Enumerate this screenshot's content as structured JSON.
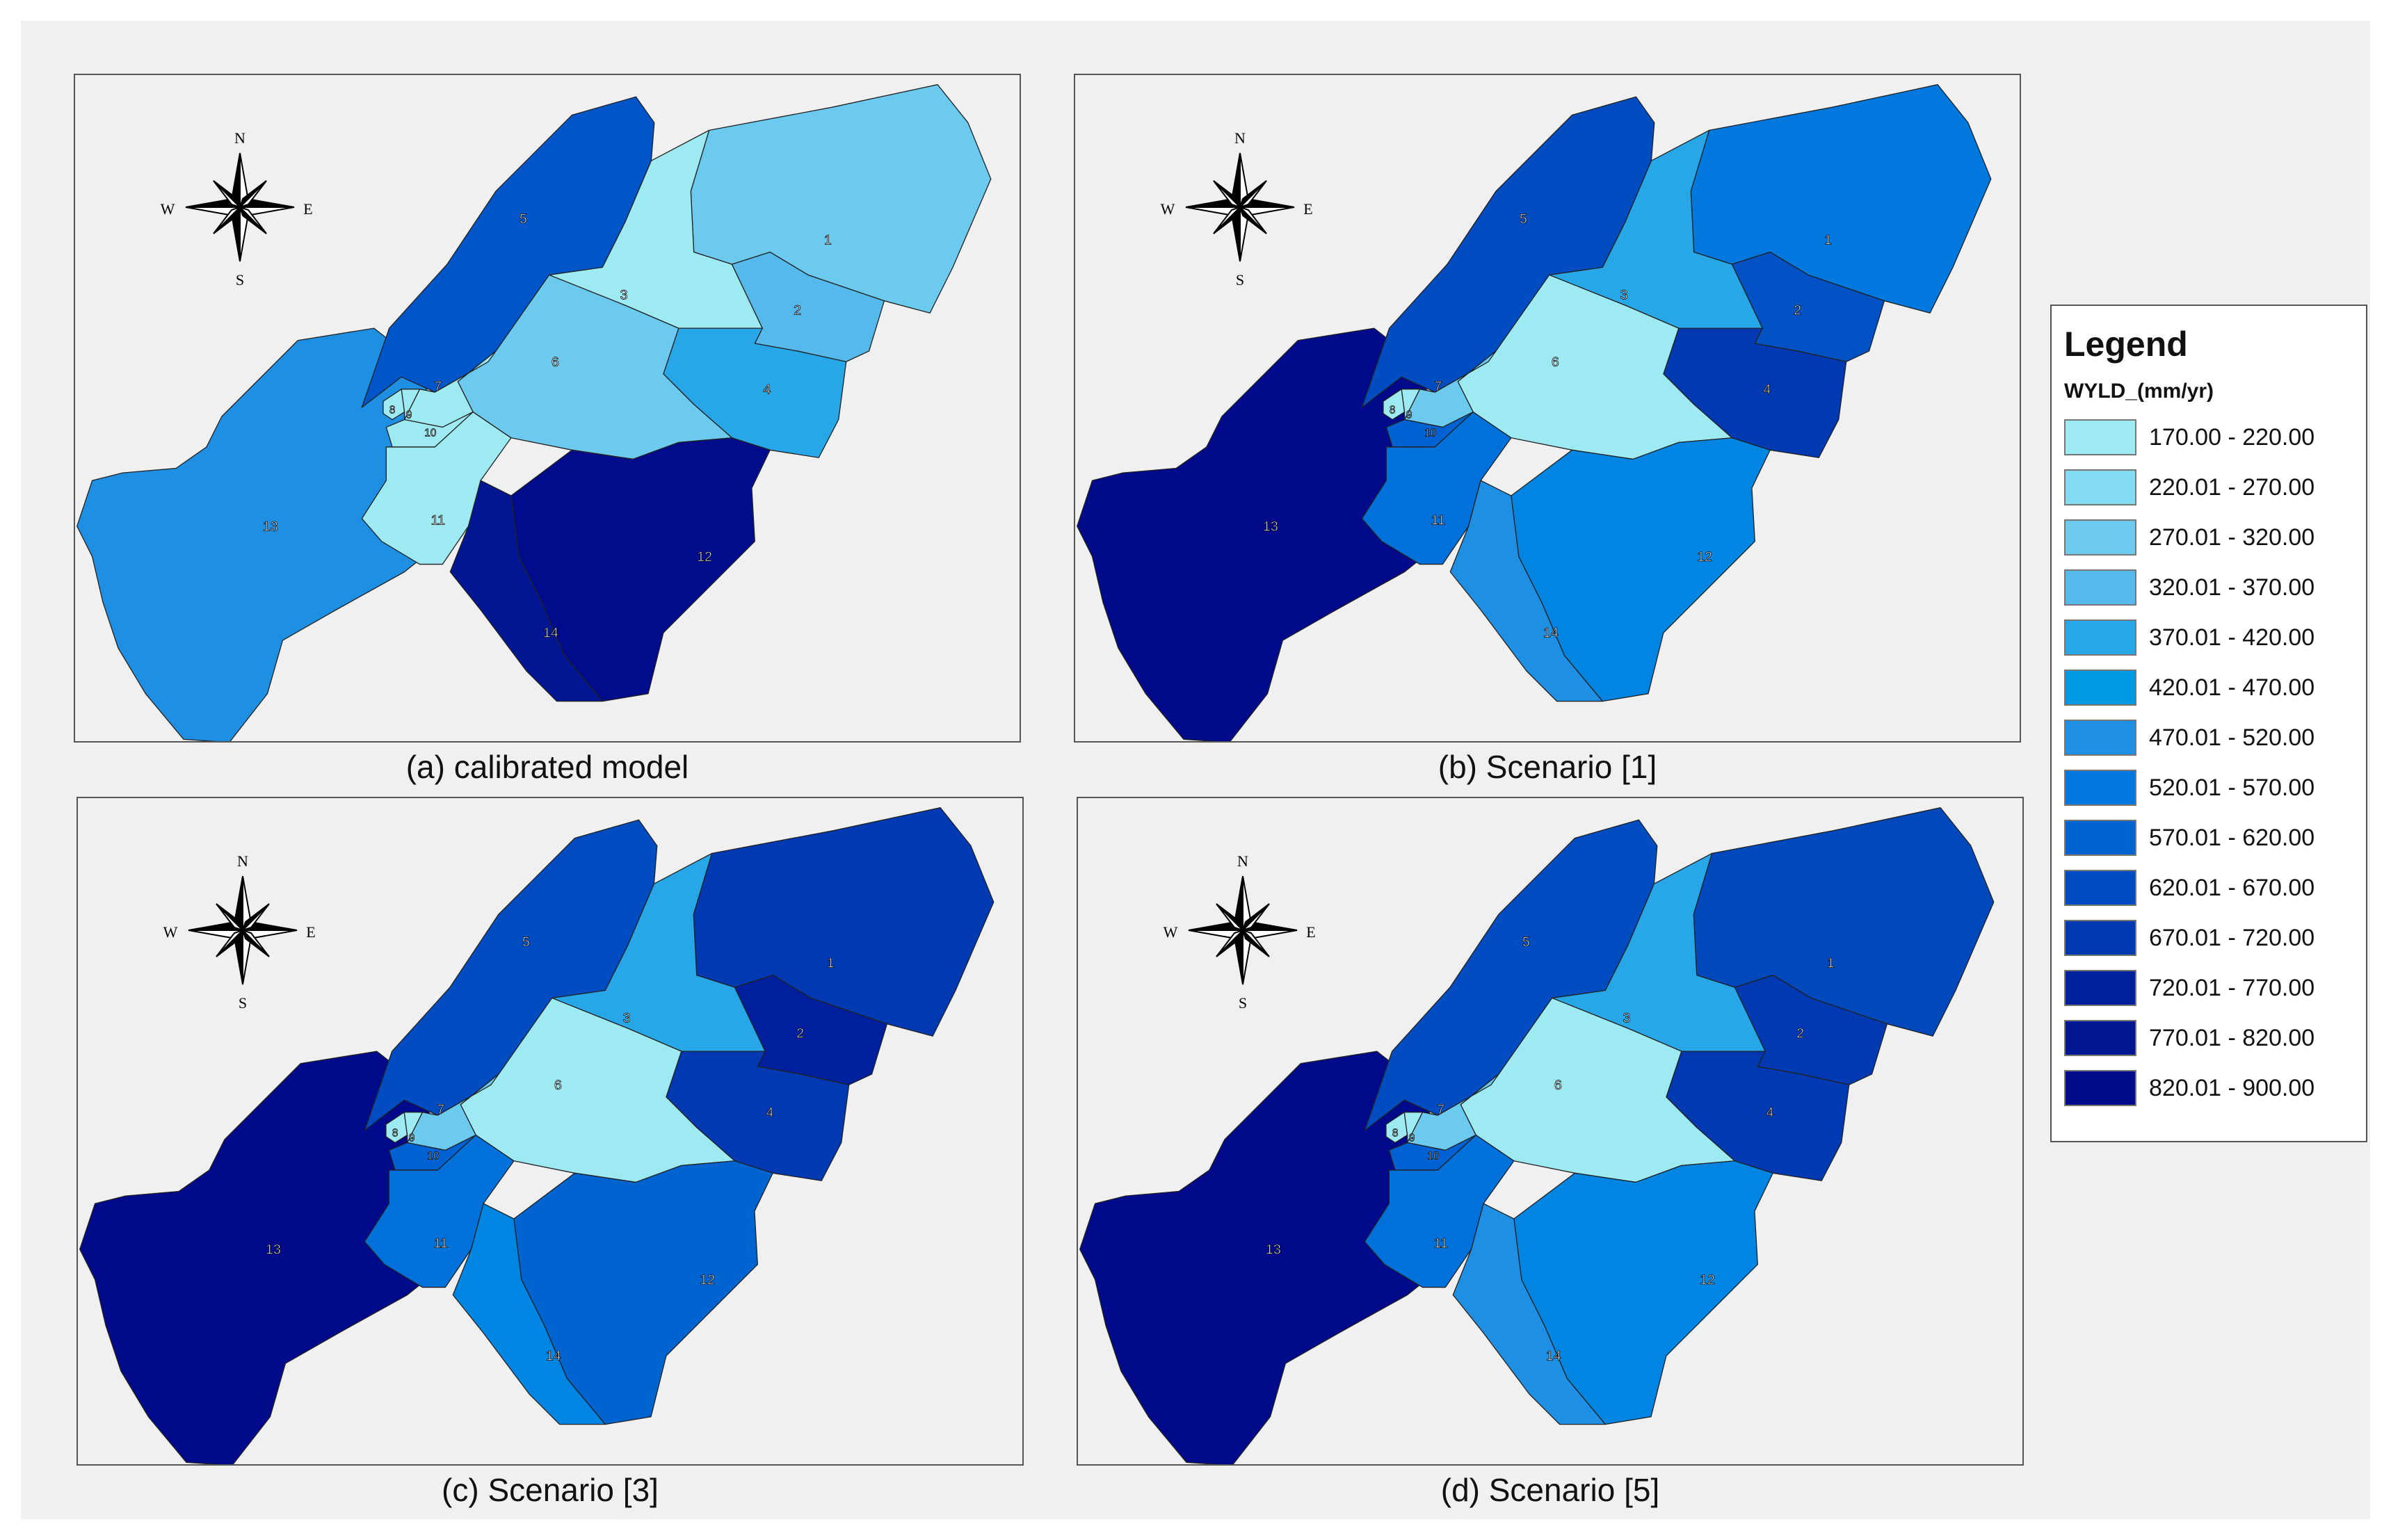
{
  "panels": [
    {
      "caption": "(a) calibrated model",
      "colors": {
        "1": "#6dcaef",
        "2": "#55b9eb",
        "3": "#9deaf2",
        "4": "#27a7e8",
        "5": "#0055c9",
        "6": "#6dcaef",
        "7": "#9deaf2",
        "8": "#9deaf2",
        "9": "#9deaf2",
        "10": "#9deaf2",
        "11": "#9deaf2",
        "12": "#000c8c",
        "13": "#1f8fe3",
        "14": "#001692"
      }
    },
    {
      "caption": "(b) Scenario [1]",
      "colors": {
        "1": "#0078de",
        "2": "#0052c4",
        "3": "#27a7e8",
        "4": "#0039b2",
        "5": "#004cc0",
        "6": "#9deaf2",
        "7": "#6dcaef",
        "8": "#9deaf2",
        "9": "#9deaf2",
        "10": "#0062d2",
        "11": "#0070da",
        "12": "#0085e2",
        "13": "#000a8a",
        "14": "#1f8fe3"
      }
    },
    {
      "caption": "(c) Scenario [3]",
      "colors": {
        "1": "#0039b2",
        "2": "#001f9d",
        "3": "#27a7e8",
        "4": "#0039b2",
        "5": "#004cc0",
        "6": "#9deaf2",
        "7": "#6dcaef",
        "8": "#9deaf2",
        "9": "#9deaf2",
        "10": "#0062d2",
        "11": "#0070da",
        "12": "#0064d0",
        "13": "#000a8a",
        "14": "#0085e2"
      }
    },
    {
      "caption": "(d) Scenario [5]",
      "colors": {
        "1": "#0048bc",
        "2": "#0039b2",
        "3": "#27a7e8",
        "4": "#0039b2",
        "5": "#004cc0",
        "6": "#9deaf2",
        "7": "#6dcaef",
        "8": "#9deaf2",
        "9": "#9deaf2",
        "10": "#0062d2",
        "11": "#0070da",
        "12": "#0085e2",
        "13": "#000a8a",
        "14": "#1f8fe3"
      }
    }
  ],
  "compass": {
    "n": "N",
    "s": "S",
    "e": "E",
    "w": "W"
  },
  "legend": {
    "title": "Legend",
    "field": "WYLD_(mm/yr)",
    "classes": [
      {
        "label": "170.00 - 220.00",
        "color": "#9deaf2"
      },
      {
        "label": "220.01 - 270.00",
        "color": "#83dcf1"
      },
      {
        "label": "270.01 - 320.00",
        "color": "#6dcaef"
      },
      {
        "label": "320.01 - 370.00",
        "color": "#55b9eb"
      },
      {
        "label": "370.01 - 420.00",
        "color": "#27a7e8"
      },
      {
        "label": "420.01 - 470.00",
        "color": "#009ae4"
      },
      {
        "label": "470.01 - 520.00",
        "color": "#1f8fe3"
      },
      {
        "label": "520.01 - 570.00",
        "color": "#0078de"
      },
      {
        "label": "570.01 - 620.00",
        "color": "#0064d0"
      },
      {
        "label": "620.01 - 670.00",
        "color": "#004cc0"
      },
      {
        "label": "670.01 - 720.00",
        "color": "#0039b2"
      },
      {
        "label": "720.01 - 770.00",
        "color": "#001f9d"
      },
      {
        "label": "770.01 - 820.00",
        "color": "#001692"
      },
      {
        "label": "820.01 - 900.00",
        "color": "#000a8a"
      }
    ]
  }
}
